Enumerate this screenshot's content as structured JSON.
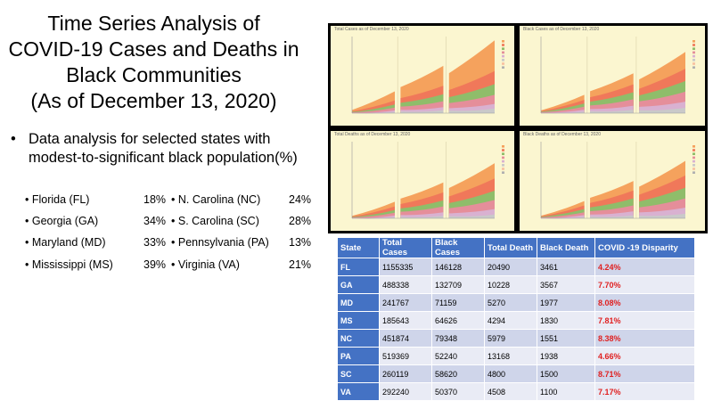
{
  "slide": {
    "title_lines": [
      "Time Series Analysis of",
      "COVID-19 Cases and Deaths in",
      "Black Communities",
      "(As of December 13, 2020)"
    ],
    "lead_bullet": "Data analysis for selected states with modest-to-significant black population(%)",
    "states": [
      {
        "left_name": "Florida (FL)",
        "left_pct": "18%",
        "right_name": "N. Carolina (NC)",
        "right_pct": "24%"
      },
      {
        "left_name": "Georgia (GA)",
        "left_pct": "34%",
        "right_name": "S. Carolina (SC)",
        "right_pct": "28%"
      },
      {
        "left_name": "Maryland (MD)",
        "left_pct": "33%",
        "right_name": "Pennsylvania (PA)",
        "right_pct": "13%"
      },
      {
        "left_name": "Mississippi (MS)",
        "left_pct": "39%",
        "right_name": "Virginia (VA)",
        "right_pct": "21%"
      }
    ]
  },
  "charts": {
    "panels": [
      {
        "title": "Total Cases as of December 13, 2020"
      },
      {
        "title": "Black Cases as of December 13, 2020"
      },
      {
        "title": "Total Deaths as of December 13, 2020"
      },
      {
        "title": "Black Deaths as of December 13, 2020"
      }
    ],
    "band_colors": [
      "#f5a25d",
      "#f0785a",
      "#8fbd6a",
      "#e58e9a",
      "#d9b1d1",
      "#c9c9c9"
    ],
    "background": "#fbf6d0"
  },
  "table": {
    "headers": [
      "State",
      "Total Cases",
      "Black Cases",
      "Total Death",
      "Black Death",
      "COVID -19 Disparity"
    ],
    "rows": [
      [
        "FL",
        "1155335",
        "146128",
        "20490",
        "3461",
        "4.24%"
      ],
      [
        "GA",
        "488338",
        "132709",
        "10228",
        "3567",
        "7.70%"
      ],
      [
        "MD",
        "241767",
        "71159",
        "5270",
        "1977",
        "8.08%"
      ],
      [
        "MS",
        "185643",
        "64626",
        "4294",
        "1830",
        "7.81%"
      ],
      [
        "NC",
        "451874",
        "79348",
        "5979",
        "1551",
        "8.38%"
      ],
      [
        "PA",
        "519369",
        "52240",
        "13168",
        "1938",
        "4.66%"
      ],
      [
        "SC",
        "260119",
        "58620",
        "4800",
        "1500",
        "8.71%"
      ],
      [
        "VA",
        "292240",
        "50370",
        "4508",
        "1100",
        "7.17%"
      ]
    ],
    "colors": {
      "header": "#4472c4",
      "row_odd": "#cfd5ea",
      "row_even": "#e9ebf5",
      "disparity_text": "#e02020"
    }
  }
}
